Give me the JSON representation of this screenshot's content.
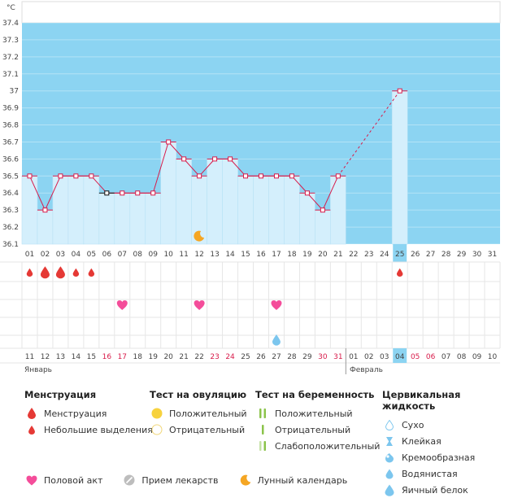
{
  "chart_data": {
    "type": "line",
    "unit": "°C",
    "ylim": [
      36.1,
      37.4
    ],
    "yticks": [
      "37.4",
      "37.3",
      "37.2",
      "37.1",
      "37",
      "36.9",
      "36.8",
      "36.7",
      "36.6",
      "36.5",
      "36.4",
      "36.3",
      "36.2",
      "36.1"
    ],
    "cycle_days": [
      "01",
      "02",
      "03",
      "04",
      "05",
      "06",
      "07",
      "08",
      "09",
      "10",
      "11",
      "12",
      "13",
      "14",
      "15",
      "16",
      "17",
      "18",
      "19",
      "20",
      "21",
      "22",
      "23",
      "24",
      "25",
      "26",
      "27",
      "28",
      "29",
      "30",
      "31"
    ],
    "temperature": [
      36.5,
      36.3,
      36.5,
      36.5,
      36.5,
      36.4,
      36.4,
      36.4,
      36.4,
      36.7,
      36.6,
      36.5,
      36.6,
      36.6,
      36.5,
      36.5,
      36.5,
      36.5,
      36.4,
      36.3,
      36.5,
      null,
      null,
      null,
      37.0,
      null,
      null,
      null,
      null,
      null,
      null
    ],
    "current_day": "25",
    "moon_day": "12",
    "menstruation_days": [
      "01",
      "02",
      "03",
      "04",
      "05"
    ],
    "menstruation_heavy_days": [
      "02",
      "03"
    ],
    "spotting_days": [
      "25"
    ],
    "intercourse_days": [
      "07",
      "12",
      "17"
    ],
    "cervical_fluid_days": [
      "17"
    ],
    "calendar_dates": [
      "11",
      "12",
      "13",
      "14",
      "15",
      "16",
      "17",
      "18",
      "19",
      "20",
      "21",
      "22",
      "23",
      "24",
      "25",
      "26",
      "27",
      "28",
      "29",
      "30",
      "31",
      "01",
      "02",
      "03",
      "04",
      "05",
      "06",
      "07",
      "08",
      "09",
      "10"
    ],
    "weekend_dates_idx": [
      5,
      6,
      12,
      13,
      19,
      20,
      25,
      26
    ],
    "month_jan": "Январь",
    "month_feb": "Февраль",
    "month_split_idx": 21
  },
  "colors": {
    "luteal_bg": "#8cd4f2",
    "bar": "#d4effc",
    "line": "#d81b4a",
    "heart": "#f44d9a",
    "moon": "#f5a623",
    "fluid": "#7cc6ee",
    "grid": "#e6e6e6"
  },
  "legend": {
    "menstruation": {
      "title": "Менструация",
      "items": [
        "Менструация",
        "Небольшие выделения"
      ]
    },
    "ovulation": {
      "title": "Тест на овуляцию",
      "items": [
        "Положительный",
        "Отрицательный"
      ]
    },
    "pregnancy": {
      "title": "Тест на беременность",
      "items": [
        "Положительный",
        "Отрицательный",
        "Слабоположительный"
      ]
    },
    "cervical": {
      "title": "Цервикальная жидкость",
      "items": [
        "Сухо",
        "Клейкая",
        "Кремообразная",
        "Водянистая",
        "Яичный белок"
      ]
    },
    "bottom": [
      "Половой акт",
      "Прием лекарств",
      "Лунный календарь"
    ]
  }
}
